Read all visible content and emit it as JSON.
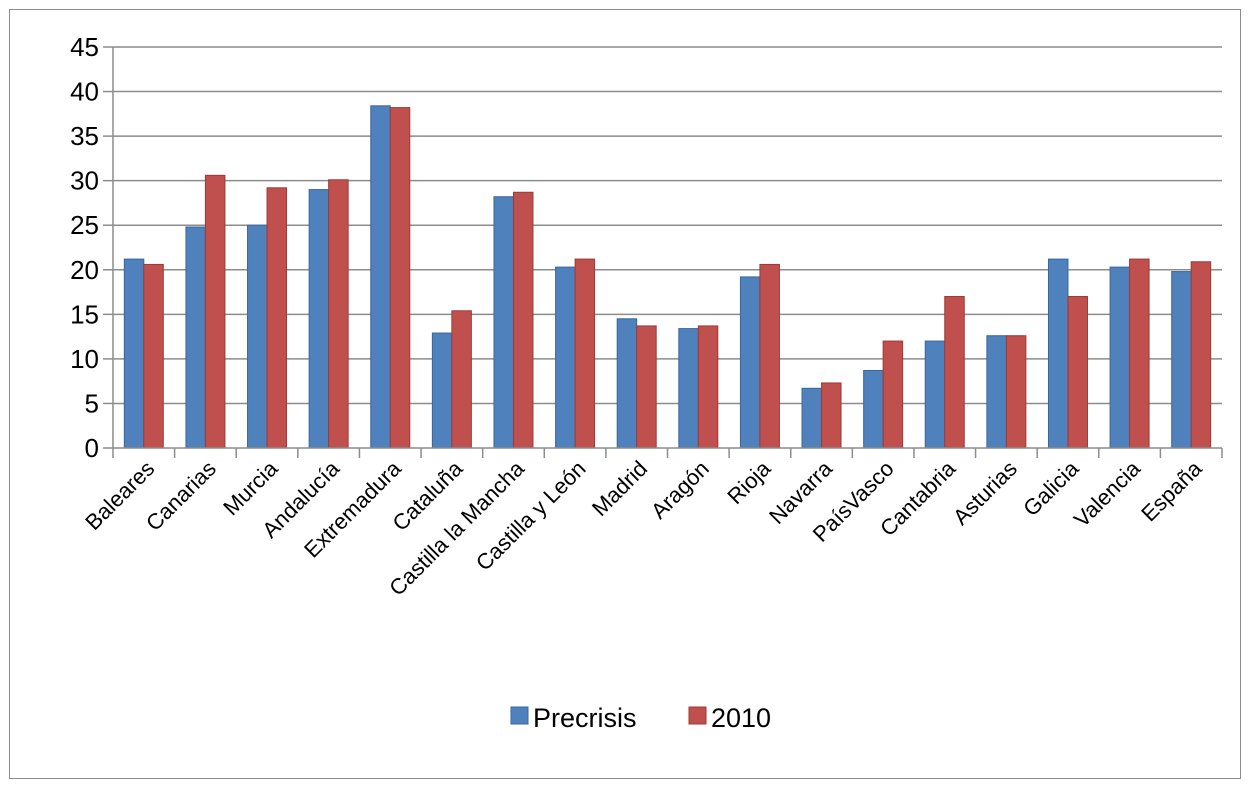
{
  "chart_data": {
    "type": "bar",
    "categories": [
      "Baleares",
      "Canarias",
      "Murcia",
      "Andalucía",
      "Extremadura",
      "Cataluña",
      "Castilla la Mancha",
      "Castilla y León",
      "Madrid",
      "Aragón",
      "Rioja",
      "Navarra",
      "PaísVasco",
      "Cantabria",
      "Asturias",
      "Galicia",
      "Valencia",
      "España"
    ],
    "series": [
      {
        "name": "Precrisis",
        "color": "#4f81bd",
        "values": [
          21.2,
          24.8,
          25.0,
          29.0,
          38.4,
          12.9,
          28.2,
          20.3,
          14.5,
          13.4,
          19.2,
          6.7,
          8.7,
          12.0,
          12.6,
          21.2,
          20.3,
          19.8
        ]
      },
      {
        "name": "2010",
        "color": "#c0504d",
        "values": [
          20.6,
          30.6,
          29.2,
          30.1,
          38.2,
          15.4,
          28.7,
          21.2,
          13.7,
          13.7,
          20.6,
          7.3,
          12.0,
          17.0,
          12.6,
          17.0,
          21.2,
          20.9
        ]
      }
    ],
    "yticks": [
      0,
      5,
      10,
      15,
      20,
      25,
      30,
      35,
      40,
      45
    ],
    "ylim": [
      0,
      45
    ],
    "grid": true,
    "legend": "bottom"
  }
}
